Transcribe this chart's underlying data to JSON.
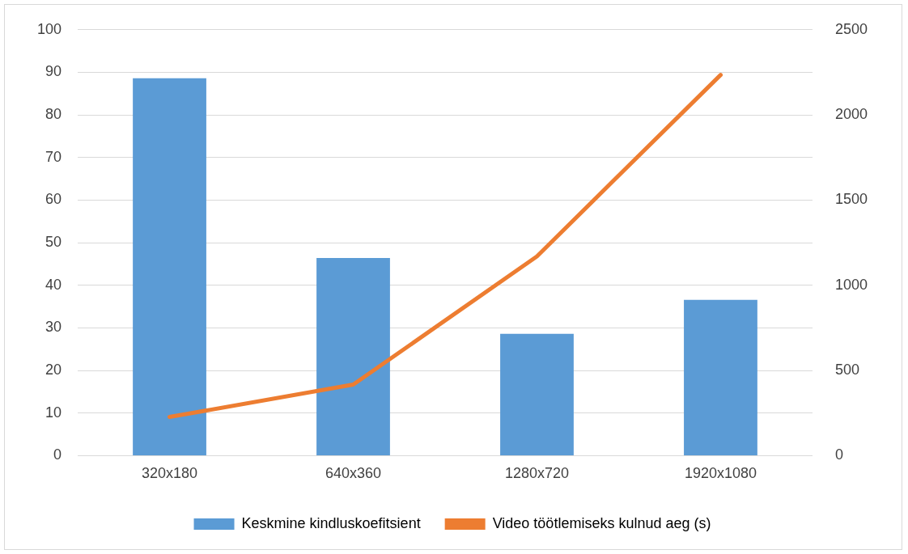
{
  "chart_data": {
    "type": "bar",
    "categories": [
      "320x180",
      "640x360",
      "1280x720",
      "1920x1080"
    ],
    "series": [
      {
        "name": "Keskmine kindluskoefitsient",
        "color": "#5b9bd5",
        "values": [
          88.6,
          46.4,
          28.6,
          36.6
        ]
      },
      {
        "name": "Video töötlemiseks kulnud aeg (s)",
        "type": "line",
        "axis": "y2",
        "color": "#ed7d31",
        "values": [
          227,
          417,
          1170,
          2235
        ]
      }
    ],
    "ylim": [
      0,
      100
    ],
    "yticks": [
      0,
      10,
      20,
      30,
      40,
      50,
      60,
      70,
      80,
      90,
      100
    ],
    "y2lim": [
      0,
      2500
    ],
    "y2ticks": [
      0,
      500,
      1000,
      1500,
      2000,
      2500
    ],
    "grid": "y",
    "legend": "bottom",
    "marker": "none"
  }
}
